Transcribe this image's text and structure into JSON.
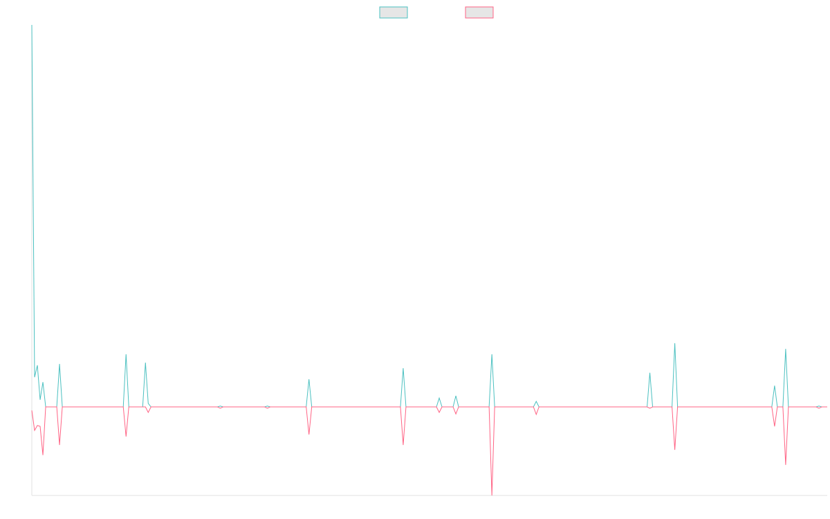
{
  "chart_data": {
    "type": "line",
    "categories": [
      null,
      null,
      null,
      null,
      null,
      null,
      null,
      null,
      null,
      null,
      null,
      null,
      null,
      null,
      null,
      null,
      null,
      null,
      null,
      null,
      null,
      null,
      null,
      null,
      null,
      null,
      null,
      null,
      null,
      null,
      null,
      null,
      null,
      null,
      null,
      null,
      null,
      null,
      null,
      null,
      null,
      null,
      null,
      null,
      null,
      null,
      null,
      null,
      null,
      null,
      null,
      null,
      null,
      null,
      null,
      null,
      null,
      null,
      null,
      null,
      null,
      null,
      null,
      null,
      null,
      null,
      null,
      null,
      null,
      null,
      null,
      null,
      null,
      null,
      null,
      null,
      null,
      null,
      null,
      null,
      null,
      null,
      null,
      null,
      null,
      null,
      null,
      null,
      null,
      null,
      null,
      null,
      null,
      null,
      null,
      null,
      null,
      null,
      null,
      null,
      null,
      null,
      null,
      null,
      null,
      null,
      null,
      null,
      null,
      null,
      null,
      null,
      null,
      null,
      null,
      null,
      null,
      null,
      null,
      null,
      null,
      null,
      null,
      null,
      null,
      null,
      null,
      null,
      null,
      null,
      null,
      null,
      null,
      null,
      null,
      null,
      null,
      null,
      null,
      null,
      null,
      null,
      null,
      null,
      null,
      null,
      null,
      null,
      null,
      null,
      null,
      null,
      null,
      null,
      null,
      null,
      null,
      null,
      null,
      null,
      null,
      null,
      null,
      null,
      null,
      null,
      null,
      null,
      null,
      null,
      null,
      null,
      null,
      null,
      null,
      null,
      null,
      null,
      null,
      null,
      null,
      null,
      null,
      null,
      null,
      null,
      null,
      null,
      null,
      null,
      null,
      null,
      null,
      null,
      null,
      null,
      null,
      null,
      null,
      null,
      null,
      null,
      null,
      null,
      null,
      null,
      null,
      null,
      null,
      null,
      null,
      null,
      null,
      null,
      null,
      null,
      null,
      null,
      null,
      null,
      null,
      null,
      null,
      null,
      null,
      null,
      null,
      null,
      null,
      null,
      null,
      null,
      null,
      null,
      null,
      null,
      null,
      null,
      null,
      null,
      null,
      null,
      null,
      null,
      null,
      null,
      null,
      null,
      null,
      null,
      null,
      null,
      null,
      null,
      null,
      null,
      null,
      null,
      null,
      null,
      null,
      null,
      null,
      null,
      null,
      null,
      null,
      null,
      null,
      null,
      null,
      null,
      null,
      null,
      null,
      null,
      null,
      null,
      null,
      null,
      null,
      null,
      null,
      null,
      null,
      null,
      null,
      null
    ],
    "series": [
      {
        "color": "#4bc0c0",
        "values": [
          86.25,
          6.7,
          9.4,
          1.6,
          5.6,
          0,
          0,
          0,
          0,
          0,
          9.7,
          0,
          0,
          0,
          0,
          0,
          0,
          0,
          0,
          0,
          0,
          0,
          0,
          0,
          0,
          0,
          0,
          0,
          0,
          0,
          0,
          0,
          0,
          0,
          11.9,
          0,
          0,
          0,
          0,
          0,
          0,
          10,
          0.8,
          0,
          0,
          0,
          0,
          0,
          0,
          0,
          0,
          0,
          0,
          0,
          0,
          0,
          0,
          0,
          0,
          0,
          0,
          0,
          0,
          0,
          0,
          0,
          0,
          0,
          0.2,
          0,
          0,
          0,
          0,
          0,
          0,
          0,
          0,
          0,
          0,
          0,
          0,
          0,
          0,
          0,
          0,
          0.2,
          0,
          0,
          0,
          0,
          0,
          0,
          0,
          0,
          0,
          0,
          0,
          0,
          0,
          0,
          6.25,
          0,
          0,
          0,
          0,
          0,
          0,
          0,
          0,
          0,
          0,
          0,
          0,
          0,
          0,
          0,
          0,
          0,
          0,
          0,
          0,
          0,
          0,
          0,
          0,
          0,
          0,
          0,
          0,
          0,
          0,
          0,
          0,
          0,
          8.75,
          0,
          0,
          0,
          0,
          0,
          0,
          0,
          0,
          0,
          0,
          0,
          0,
          2,
          0,
          0,
          0,
          0,
          0,
          2.5,
          0,
          0,
          0,
          0,
          0,
          0,
          0,
          0,
          0,
          0,
          0,
          0,
          11.9,
          0,
          0,
          0,
          0,
          0,
          0,
          0,
          0,
          0,
          0,
          0,
          0,
          0,
          0,
          0,
          1.25,
          0,
          0,
          0,
          0,
          0,
          0,
          0,
          0,
          0,
          0,
          0,
          0,
          0,
          0,
          0,
          0,
          0,
          0,
          0,
          0,
          0,
          0,
          0,
          0,
          0,
          0,
          0,
          0,
          0,
          0,
          0,
          0,
          0,
          0,
          0,
          0,
          0,
          0,
          0,
          0,
          7.7,
          0,
          0,
          0,
          0,
          0,
          0,
          0,
          0,
          14.4,
          0,
          0,
          0,
          0,
          0,
          0,
          0,
          0,
          0,
          0,
          0,
          0,
          0,
          0,
          0,
          0,
          0,
          0,
          0,
          0,
          0,
          0,
          0,
          0,
          0,
          0,
          0,
          0,
          0,
          0,
          0,
          0,
          0,
          0,
          0,
          4.8,
          0,
          0,
          0,
          13.1,
          0,
          0,
          0,
          0,
          0,
          0,
          0,
          0,
          0,
          0,
          0,
          0.2,
          0,
          0,
          0
        ]
      },
      {
        "color": "#ff6384",
        "values": [
          -0.8,
          -5.3,
          -4.2,
          -4.4,
          -10.9,
          0,
          0,
          0,
          0,
          0,
          -8.6,
          0,
          0,
          0,
          0,
          0,
          0,
          0,
          0,
          0,
          0,
          0,
          0,
          0,
          0,
          0,
          0,
          0,
          0,
          0,
          0,
          0,
          0,
          0,
          -6.7,
          0,
          0,
          0,
          0,
          0,
          0,
          0,
          -1.25,
          0,
          0,
          0,
          0,
          0,
          0,
          0,
          0,
          0,
          0,
          0,
          0,
          0,
          0,
          0,
          0,
          0,
          0,
          0,
          0,
          0,
          0,
          0,
          0,
          0,
          -0.3,
          0,
          0,
          0,
          0,
          0,
          0,
          0,
          0,
          0,
          0,
          0,
          0,
          0,
          0,
          0,
          0,
          -0.3,
          0,
          0,
          0,
          0,
          0,
          0,
          0,
          0,
          0,
          0,
          0,
          0,
          0,
          0,
          -6.25,
          0,
          0,
          0,
          0,
          0,
          0,
          0,
          0,
          0,
          0,
          0,
          0,
          0,
          0,
          0,
          0,
          0,
          0,
          0,
          0,
          0,
          0,
          0,
          0,
          0,
          0,
          0,
          0,
          0,
          0,
          0,
          0,
          0,
          -8.6,
          0,
          0,
          0,
          0,
          0,
          0,
          0,
          0,
          0,
          0,
          0,
          0,
          -1.25,
          0,
          0,
          0,
          0,
          0,
          -1.6,
          0,
          0,
          0,
          0,
          0,
          0,
          0,
          0,
          0,
          0,
          0,
          0,
          -20,
          0,
          0,
          0,
          0,
          0,
          0,
          0,
          0,
          0,
          0,
          0,
          0,
          0,
          0,
          0,
          -1.7,
          0,
          0,
          0,
          0,
          0,
          0,
          0,
          0,
          0,
          0,
          0,
          0,
          0,
          0,
          0,
          0,
          0,
          0,
          0,
          0,
          0,
          0,
          0,
          0,
          0,
          0,
          0,
          0,
          0,
          0,
          0,
          0,
          0,
          0,
          0,
          0,
          0,
          0,
          0,
          0,
          -0.3,
          0,
          0,
          0,
          0,
          0,
          0,
          0,
          0,
          -9.7,
          0,
          0,
          0,
          0,
          0,
          0,
          0,
          0,
          0,
          0,
          0,
          0,
          0,
          0,
          0,
          0,
          0,
          0,
          0,
          0,
          0,
          0,
          0,
          0,
          0,
          0,
          0,
          0,
          0,
          0,
          0,
          0,
          0,
          0,
          0,
          -4.4,
          0,
          0,
          0,
          -13.1,
          0,
          0,
          0,
          0,
          0,
          0,
          0,
          0,
          0,
          0,
          0,
          -0.3,
          0,
          0,
          0
        ]
      }
    ],
    "ylim": [
      -20,
      86.25
    ],
    "legend": "top"
  }
}
